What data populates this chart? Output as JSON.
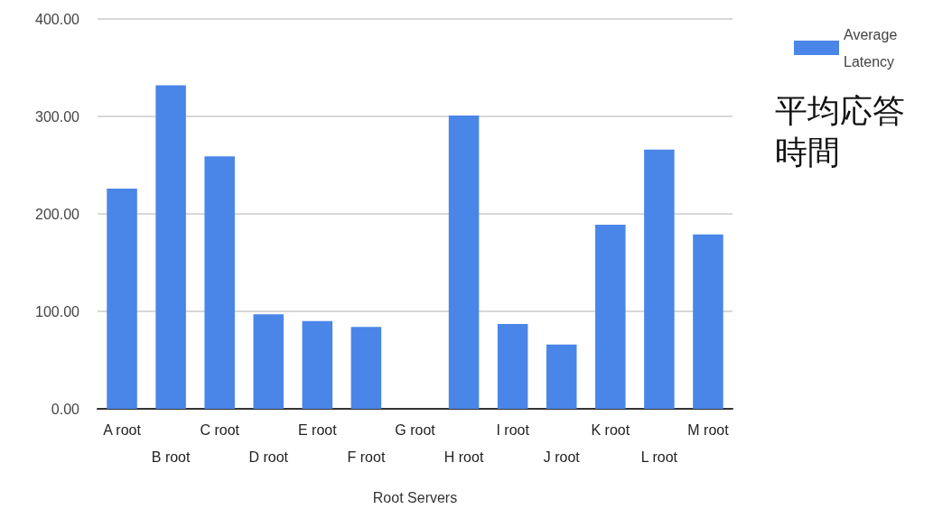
{
  "chart_data": {
    "type": "bar",
    "xlabel": "Root Servers",
    "categories": [
      "A root",
      "B root",
      "C root",
      "D root",
      "E root",
      "F root",
      "G root",
      "H root",
      "I root",
      "J root",
      "K root",
      "L root",
      "M root"
    ],
    "series": [
      {
        "name": "Average Latency",
        "color": "#4a86e8",
        "values": [
          226,
          332,
          259,
          97,
          90,
          84,
          null,
          301,
          87,
          66,
          189,
          266,
          179
        ]
      }
    ],
    "ylim": [
      0,
      400
    ],
    "yticks": [
      {
        "value": 0,
        "label": "0.00"
      },
      {
        "value": 100,
        "label": "100.00"
      },
      {
        "value": 200,
        "label": "200.00"
      },
      {
        "value": 300,
        "label": "300.00"
      },
      {
        "value": 400,
        "label": "400.00"
      }
    ],
    "grid": "y",
    "legend": "top right",
    "annotations": [
      "平均応答時間"
    ]
  }
}
